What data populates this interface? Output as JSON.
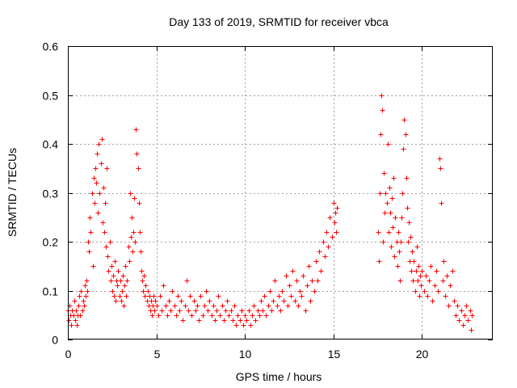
{
  "chart_data": {
    "type": "scatter",
    "title": "Day 133 of 2019, SRMTID for receiver vbca",
    "xlabel": "GPS time / hours",
    "ylabel": "SRMTID / TECUs",
    "xlim": [
      0,
      24
    ],
    "ylim": [
      0,
      0.6
    ],
    "xticks": [
      0,
      5,
      10,
      15,
      20
    ],
    "xtick_labels": [
      "0",
      "5",
      "10",
      "15",
      "20"
    ],
    "yticks": [
      0,
      0.1,
      0.2,
      0.3,
      0.4,
      0.5,
      0.6
    ],
    "ytick_labels": [
      "0",
      "0.1",
      "0.2",
      "0.3",
      "0.4",
      "0.5",
      "0.6"
    ],
    "grid": true,
    "marker": "+",
    "color": "#ff0000",
    "series": [
      {
        "name": "SRMTID",
        "points": [
          [
            0.0,
            0.06
          ],
          [
            0.05,
            0.04
          ],
          [
            0.1,
            0.07
          ],
          [
            0.15,
            0.05
          ],
          [
            0.2,
            0.03
          ],
          [
            0.25,
            0.06
          ],
          [
            0.3,
            0.05
          ],
          [
            0.35,
            0.08
          ],
          [
            0.4,
            0.04
          ],
          [
            0.45,
            0.06
          ],
          [
            0.5,
            0.03
          ],
          [
            0.55,
            0.05
          ],
          [
            0.6,
            0.07
          ],
          [
            0.65,
            0.09
          ],
          [
            0.7,
            0.05
          ],
          [
            0.75,
            0.1
          ],
          [
            0.8,
            0.06
          ],
          [
            0.85,
            0.08
          ],
          [
            0.9,
            0.07
          ],
          [
            0.95,
            0.11
          ],
          [
            1.0,
            0.09
          ],
          [
            1.05,
            0.12
          ],
          [
            1.1,
            0.1
          ],
          [
            1.15,
            0.2
          ],
          [
            1.2,
            0.18
          ],
          [
            1.25,
            0.25
          ],
          [
            1.3,
            0.22
          ],
          [
            1.35,
            0.3
          ],
          [
            1.4,
            0.15
          ],
          [
            1.45,
            0.33
          ],
          [
            1.5,
            0.28
          ],
          [
            1.55,
            0.35
          ],
          [
            1.6,
            0.32
          ],
          [
            1.65,
            0.38
          ],
          [
            1.7,
            0.26
          ],
          [
            1.75,
            0.4
          ],
          [
            1.8,
            0.3
          ],
          [
            1.85,
            0.36
          ],
          [
            1.9,
            0.41
          ],
          [
            1.95,
            0.24
          ],
          [
            2.0,
            0.31
          ],
          [
            2.05,
            0.22
          ],
          [
            2.1,
            0.28
          ],
          [
            2.15,
            0.19
          ],
          [
            2.2,
            0.35
          ],
          [
            2.25,
            0.17
          ],
          [
            2.3,
            0.14
          ],
          [
            2.35,
            0.2
          ],
          [
            2.4,
            0.12
          ],
          [
            2.45,
            0.15
          ],
          [
            2.5,
            0.1
          ],
          [
            2.55,
            0.13
          ],
          [
            2.6,
            0.09
          ],
          [
            2.65,
            0.16
          ],
          [
            2.7,
            0.08
          ],
          [
            2.75,
            0.12
          ],
          [
            2.8,
            0.11
          ],
          [
            2.85,
            0.14
          ],
          [
            2.9,
            0.09
          ],
          [
            2.95,
            0.12
          ],
          [
            3.0,
            0.08
          ],
          [
            3.05,
            0.1
          ],
          [
            3.1,
            0.13
          ],
          [
            3.15,
            0.07
          ],
          [
            3.2,
            0.11
          ],
          [
            3.25,
            0.15
          ],
          [
            3.3,
            0.09
          ],
          [
            3.35,
            0.12
          ],
          [
            3.4,
            0.19
          ],
          [
            3.45,
            0.16
          ],
          [
            3.5,
            0.3
          ],
          [
            3.55,
            0.21
          ],
          [
            3.6,
            0.25
          ],
          [
            3.65,
            0.18
          ],
          [
            3.7,
            0.22
          ],
          [
            3.75,
            0.29
          ],
          [
            3.8,
            0.2
          ],
          [
            3.85,
            0.43
          ],
          [
            3.9,
            0.38
          ],
          [
            3.95,
            0.35
          ],
          [
            4.0,
            0.28
          ],
          [
            4.05,
            0.22
          ],
          [
            4.1,
            0.18
          ],
          [
            4.15,
            0.14
          ],
          [
            4.2,
            0.12
          ],
          [
            4.25,
            0.1
          ],
          [
            4.3,
            0.13
          ],
          [
            4.35,
            0.09
          ],
          [
            4.4,
            0.11
          ],
          [
            4.45,
            0.08
          ],
          [
            4.5,
            0.1
          ],
          [
            4.55,
            0.07
          ],
          [
            4.6,
            0.09
          ],
          [
            4.65,
            0.06
          ],
          [
            4.7,
            0.08
          ],
          [
            4.75,
            0.05
          ],
          [
            4.8,
            0.07
          ],
          [
            4.85,
            0.09
          ],
          [
            4.9,
            0.06
          ],
          [
            4.95,
            0.08
          ],
          [
            5.0,
            0.07
          ],
          [
            5.1,
            0.05
          ],
          [
            5.2,
            0.09
          ],
          [
            5.3,
            0.06
          ],
          [
            5.4,
            0.11
          ],
          [
            5.5,
            0.07
          ],
          [
            5.6,
            0.05
          ],
          [
            5.7,
            0.08
          ],
          [
            5.8,
            0.06
          ],
          [
            5.9,
            0.1
          ],
          [
            6.0,
            0.07
          ],
          [
            6.1,
            0.05
          ],
          [
            6.2,
            0.09
          ],
          [
            6.3,
            0.06
          ],
          [
            6.4,
            0.08
          ],
          [
            6.5,
            0.04
          ],
          [
            6.6,
            0.07
          ],
          [
            6.7,
            0.12
          ],
          [
            6.8,
            0.06
          ],
          [
            6.9,
            0.09
          ],
          [
            7.0,
            0.05
          ],
          [
            7.1,
            0.08
          ],
          [
            7.2,
            0.06
          ],
          [
            7.3,
            0.07
          ],
          [
            7.4,
            0.04
          ],
          [
            7.5,
            0.09
          ],
          [
            7.6,
            0.05
          ],
          [
            7.7,
            0.07
          ],
          [
            7.8,
            0.1
          ],
          [
            7.9,
            0.06
          ],
          [
            8.0,
            0.08
          ],
          [
            8.1,
            0.05
          ],
          [
            8.2,
            0.07
          ],
          [
            8.3,
            0.04
          ],
          [
            8.4,
            0.06
          ],
          [
            8.5,
            0.09
          ],
          [
            8.6,
            0.05
          ],
          [
            8.7,
            0.07
          ],
          [
            8.8,
            0.04
          ],
          [
            8.9,
            0.06
          ],
          [
            9.0,
            0.08
          ],
          [
            9.1,
            0.05
          ],
          [
            9.2,
            0.06
          ],
          [
            9.3,
            0.04
          ],
          [
            9.4,
            0.07
          ],
          [
            9.5,
            0.03
          ],
          [
            9.6,
            0.05
          ],
          [
            9.7,
            0.04
          ],
          [
            9.8,
            0.06
          ],
          [
            9.9,
            0.03
          ],
          [
            10.0,
            0.05
          ],
          [
            10.1,
            0.04
          ],
          [
            10.2,
            0.06
          ],
          [
            10.3,
            0.03
          ],
          [
            10.4,
            0.05
          ],
          [
            10.5,
            0.07
          ],
          [
            10.6,
            0.04
          ],
          [
            10.7,
            0.06
          ],
          [
            10.8,
            0.05
          ],
          [
            10.9,
            0.08
          ],
          [
            11.0,
            0.06
          ],
          [
            11.1,
            0.09
          ],
          [
            11.2,
            0.05
          ],
          [
            11.3,
            0.07
          ],
          [
            11.4,
            0.1
          ],
          [
            11.5,
            0.06
          ],
          [
            11.6,
            0.08
          ],
          [
            11.7,
            0.12
          ],
          [
            11.8,
            0.07
          ],
          [
            11.9,
            0.09
          ],
          [
            12.0,
            0.06
          ],
          [
            12.1,
            0.1
          ],
          [
            12.2,
            0.08
          ],
          [
            12.3,
            0.13
          ],
          [
            12.4,
            0.07
          ],
          [
            12.5,
            0.11
          ],
          [
            12.6,
            0.09
          ],
          [
            12.7,
            0.14
          ],
          [
            12.8,
            0.08
          ],
          [
            12.9,
            0.12
          ],
          [
            13.0,
            0.07
          ],
          [
            13.1,
            0.1
          ],
          [
            13.2,
            0.09
          ],
          [
            13.3,
            0.13
          ],
          [
            13.4,
            0.06
          ],
          [
            13.5,
            0.11
          ],
          [
            13.6,
            0.15
          ],
          [
            13.7,
            0.08
          ],
          [
            13.8,
            0.12
          ],
          [
            13.9,
            0.1
          ],
          [
            14.0,
            0.16
          ],
          [
            14.1,
            0.12
          ],
          [
            14.2,
            0.18
          ],
          [
            14.3,
            0.14
          ],
          [
            14.4,
            0.2
          ],
          [
            14.5,
            0.17
          ],
          [
            14.6,
            0.22
          ],
          [
            14.7,
            0.19
          ],
          [
            14.8,
            0.25
          ],
          [
            14.9,
            0.21
          ],
          [
            15.0,
            0.28
          ],
          [
            15.05,
            0.24
          ],
          [
            15.1,
            0.26
          ],
          [
            15.15,
            0.22
          ],
          [
            15.2,
            0.27
          ],
          [
            17.5,
            0.22
          ],
          [
            17.55,
            0.16
          ],
          [
            17.6,
            0.3
          ],
          [
            17.65,
            0.42
          ],
          [
            17.7,
            0.5
          ],
          [
            17.75,
            0.47
          ],
          [
            17.8,
            0.2
          ],
          [
            17.85,
            0.34
          ],
          [
            17.9,
            0.26
          ],
          [
            17.95,
            0.3
          ],
          [
            18.0,
            0.28
          ],
          [
            18.05,
            0.4
          ],
          [
            18.1,
            0.22
          ],
          [
            18.15,
            0.31
          ],
          [
            18.2,
            0.26
          ],
          [
            18.25,
            0.19
          ],
          [
            18.3,
            0.29
          ],
          [
            18.35,
            0.23
          ],
          [
            18.4,
            0.33
          ],
          [
            18.45,
            0.17
          ],
          [
            18.5,
            0.25
          ],
          [
            18.55,
            0.2
          ],
          [
            18.6,
            0.15
          ],
          [
            18.65,
            0.22
          ],
          [
            18.7,
            0.18
          ],
          [
            18.75,
            0.12
          ],
          [
            18.8,
            0.2
          ],
          [
            18.85,
            0.25
          ],
          [
            18.9,
            0.3
          ],
          [
            18.95,
            0.39
          ],
          [
            19.0,
            0.45
          ],
          [
            19.05,
            0.42
          ],
          [
            19.1,
            0.33
          ],
          [
            19.15,
            0.27
          ],
          [
            19.2,
            0.2
          ],
          [
            19.25,
            0.24
          ],
          [
            19.3,
            0.16
          ],
          [
            19.35,
            0.21
          ],
          [
            19.4,
            0.14
          ],
          [
            19.45,
            0.18
          ],
          [
            19.5,
            0.12
          ],
          [
            19.55,
            0.16
          ],
          [
            19.6,
            0.1
          ],
          [
            19.65,
            0.14
          ],
          [
            19.7,
            0.19
          ],
          [
            19.75,
            0.12
          ],
          [
            19.8,
            0.15
          ],
          [
            19.85,
            0.09
          ],
          [
            19.9,
            0.13
          ],
          [
            19.95,
            0.11
          ],
          [
            20.0,
            0.14
          ],
          [
            20.1,
            0.1
          ],
          [
            20.2,
            0.13
          ],
          [
            20.3,
            0.09
          ],
          [
            20.4,
            0.12
          ],
          [
            20.5,
            0.15
          ],
          [
            20.6,
            0.08
          ],
          [
            20.7,
            0.11
          ],
          [
            20.8,
            0.14
          ],
          [
            20.9,
            0.1
          ],
          [
            21.0,
            0.37
          ],
          [
            21.05,
            0.35
          ],
          [
            21.1,
            0.28
          ],
          [
            21.15,
            0.12
          ],
          [
            21.2,
            0.16
          ],
          [
            21.3,
            0.09
          ],
          [
            21.4,
            0.13
          ],
          [
            21.5,
            0.07
          ],
          [
            21.6,
            0.11
          ],
          [
            21.7,
            0.14
          ],
          [
            21.8,
            0.08
          ],
          [
            21.9,
            0.05
          ],
          [
            22.0,
            0.07
          ],
          [
            22.1,
            0.04
          ],
          [
            22.2,
            0.06
          ],
          [
            22.3,
            0.03
          ],
          [
            22.4,
            0.05
          ],
          [
            22.5,
            0.07
          ],
          [
            22.6,
            0.04
          ],
          [
            22.7,
            0.06
          ],
          [
            22.75,
            0.02
          ],
          [
            22.8,
            0.05
          ]
        ]
      }
    ]
  }
}
